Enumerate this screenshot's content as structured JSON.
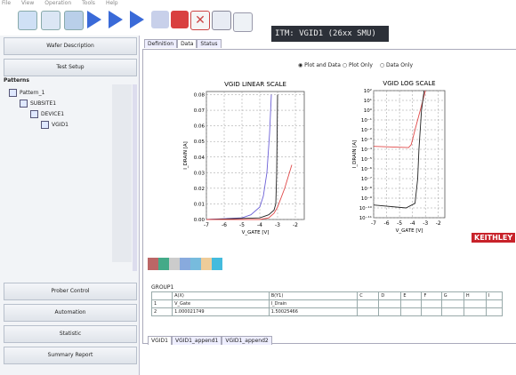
{
  "menu": [
    "File",
    "View",
    "Operation",
    "Tools",
    "Help"
  ],
  "window_title": "ITM: VGID1 (26xx SMU)",
  "nav": {
    "top": [
      "Wafer Description",
      "Test Setup"
    ],
    "tree_header": "Patterns",
    "tree": [
      "Pattern_1",
      "SUBSITE1",
      "DEVICE1",
      "VGID1"
    ],
    "bottom": [
      "Prober Control",
      "Automation",
      "Statistic",
      "Summary Report"
    ]
  },
  "tabs": [
    "Definition",
    "Data",
    "Status"
  ],
  "view_options": [
    "Plot and Data",
    "Plot Only",
    "Data Only"
  ],
  "plots": [
    {
      "type": "line",
      "title": "VGID LINEAR SCALE",
      "xlabel": "V_GATE [V]",
      "ylabel": "I_DRAIN [A]",
      "xlim": [
        -7,
        -1.5
      ],
      "xticks": [
        -7,
        -6,
        -5,
        -4,
        -3,
        -2
      ],
      "ylim": [
        0,
        0.082
      ],
      "yticks": [
        {
          "value": 0,
          "label": "0.00"
        },
        0.01,
        0.02,
        0.03,
        0.04,
        0.05,
        0.06,
        0.07,
        0.08
      ],
      "grid": true,
      "log_y": false,
      "series": [
        {
          "color": "#6b5fd6",
          "x": [
            -7,
            -5,
            -4.5,
            -4,
            -3.8,
            -3.6,
            -3.45,
            -3.35
          ],
          "y": [
            0,
            0.001,
            0.003,
            0.008,
            0.015,
            0.03,
            0.055,
            0.08
          ]
        },
        {
          "color": "#222222",
          "x": [
            -7,
            -4,
            -3.5,
            -3.2,
            -3.1,
            -3.05,
            -3.0
          ],
          "y": [
            0,
            0.001,
            0.003,
            0.006,
            0.01,
            0.03,
            0.08
          ]
        },
        {
          "color": "#e04848",
          "x": [
            -7,
            -4,
            -3.5,
            -3.2,
            -3,
            -2.6,
            -2.2
          ],
          "y": [
            0,
            0,
            0.001,
            0.004,
            0.008,
            0.02,
            0.035
          ]
        }
      ]
    },
    {
      "type": "line",
      "title": "VGID LOG SCALE",
      "xlabel": "V_GATE [V]",
      "ylabel": "I_DRAIN [A]",
      "xlim": [
        -7,
        -1.5
      ],
      "xticks": [
        -7,
        -6,
        -5,
        -4,
        -3,
        -2
      ],
      "ylim": [
        1e-11,
        100
      ],
      "log_y": true,
      "grid": true,
      "yticks": [
        {
          "value": 100,
          "label": "10²"
        },
        {
          "value": 10,
          "label": "10¹"
        },
        {
          "value": 1,
          "label": "10⁰"
        },
        {
          "value": 0.1,
          "label": "10⁻¹"
        },
        {
          "value": 0.01,
          "label": "10⁻²"
        },
        {
          "value": 0.001,
          "label": "10⁻³"
        },
        {
          "value": 0.0001,
          "label": "10⁻⁴"
        },
        {
          "value": 1e-05,
          "label": "10⁻⁵"
        },
        {
          "value": 1e-06,
          "label": "10⁻⁶"
        },
        {
          "value": 1e-07,
          "label": "10⁻⁷"
        },
        {
          "value": 1e-08,
          "label": "10⁻⁸"
        },
        {
          "value": 1e-09,
          "label": "10⁻⁹"
        },
        {
          "value": 1e-10,
          "label": "10⁻¹⁰"
        },
        {
          "value": 1e-11,
          "label": "10⁻¹¹"
        }
      ],
      "series": [
        {
          "color": "#e04848",
          "x": [
            -7,
            -4.3,
            -4.1,
            -3.8,
            -3.4,
            -3.1,
            -3.0
          ],
          "y": [
            0.0002,
            0.00015,
            0.0003,
            0.01,
            1,
            30,
            100
          ]
        },
        {
          "color": "#222222",
          "x": [
            -7,
            -4.5,
            -3.8,
            -3.6,
            -3.5,
            -3.3,
            -3.1
          ],
          "y": [
            2e-10,
            1e-10,
            3e-10,
            1e-07,
            0.0001,
            1,
            100
          ]
        }
      ]
    }
  ],
  "logo": "KEITHLEY",
  "sheet": {
    "group": "GROUP1",
    "columns": [
      "A(X)",
      "B(Y1)",
      "C",
      "D",
      "E",
      "F",
      "G",
      "H",
      "I"
    ],
    "row_numbers": [
      1,
      2
    ],
    "rows": [
      [
        "V_Gate",
        "I_Drain"
      ],
      [
        "1.000021749",
        "1.50025466"
      ]
    ]
  },
  "sheet_tabs": [
    "VGID1",
    "VGID1_append1",
    "VGID1_append2"
  ]
}
